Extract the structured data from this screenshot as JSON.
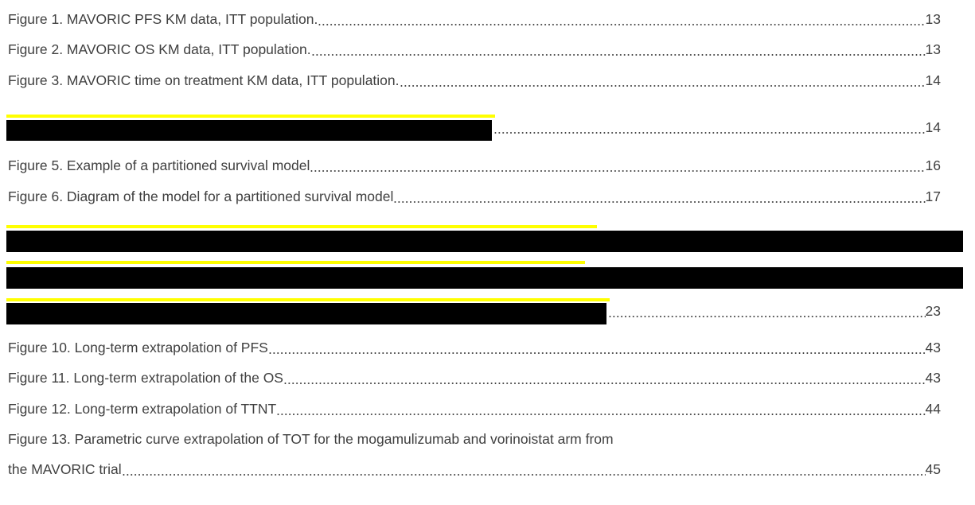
{
  "list_of_figures": {
    "entries": [
      {
        "text": "Figure 1. MAVORIC PFS KM data, ITT population.",
        "page": "13"
      },
      {
        "text": "Figure 2. MAVORIC OS KM data, ITT population.",
        "page": "13"
      },
      {
        "text": "Figure 3. MAVORIC time on treatment KM data, ITT population.",
        "page": "14"
      },
      {
        "redacted": true,
        "page": "14"
      },
      {
        "text": "Figure 5. Example of a partitioned survival model",
        "page": "16"
      },
      {
        "text": "Figure 6. Diagram of the model for a partitioned survival model",
        "page": "17"
      },
      {
        "redacted": true
      },
      {
        "redacted": true
      },
      {
        "redacted": true,
        "page": "23"
      },
      {
        "text": "Figure 10. Long-term extrapolation of PFS",
        "page": "43"
      },
      {
        "text": "Figure 11. Long-term extrapolation of the OS",
        "page": "43"
      },
      {
        "text": "Figure 12. Long-term extrapolation of TTNT",
        "page": "44"
      },
      {
        "text_lines": [
          "Figure 13. Parametric curve extrapolation of TOT for the mogamulizumab and vorinoistat arm from",
          "the MAVORIC trial"
        ],
        "page": "45"
      }
    ]
  }
}
